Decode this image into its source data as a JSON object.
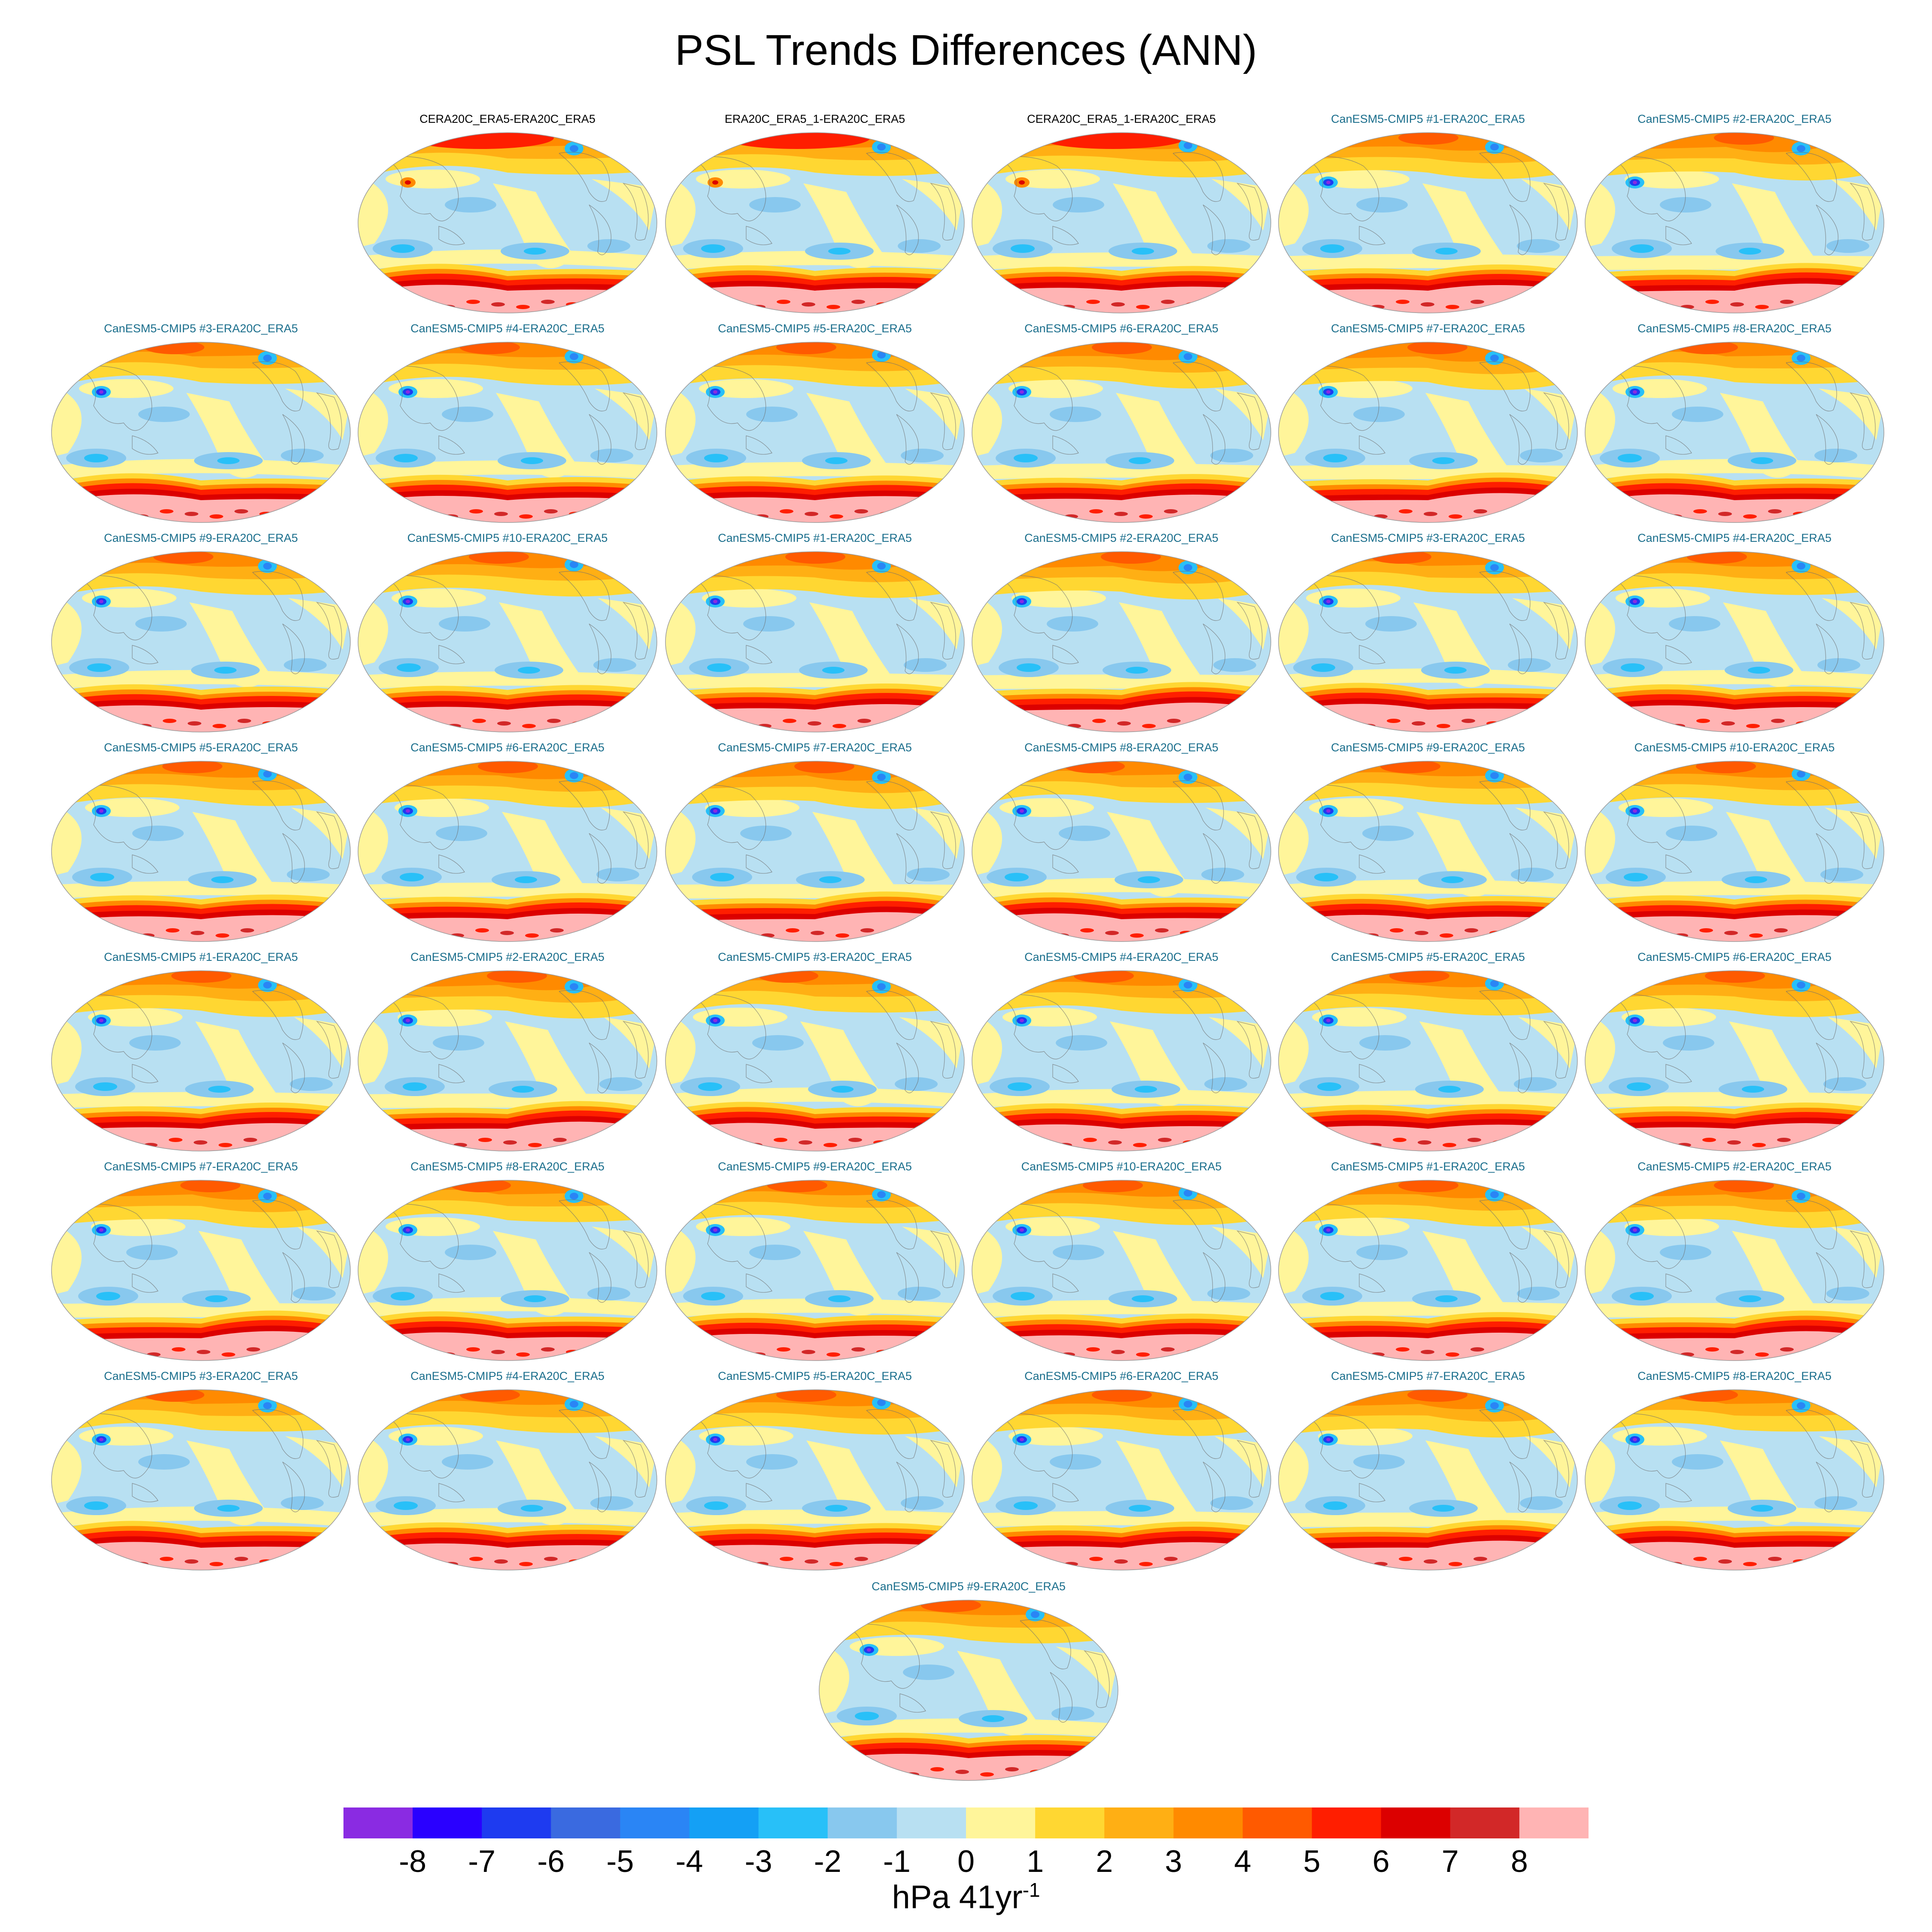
{
  "title": "PSL Trends Differences (ANN)",
  "panels": [
    {
      "title": "CERA20C_ERA5-ERA20C_ERA5",
      "title_color": "#000000",
      "kind": "ref"
    },
    {
      "title": "ERA20C_ERA5_1-ERA20C_ERA5",
      "title_color": "#000000",
      "kind": "ref"
    },
    {
      "title": "CERA20C_ERA5_1-ERA20C_ERA5",
      "title_color": "#000000",
      "kind": "ref"
    },
    {
      "title": "CanESM5-CMIP5 #1-ERA20C_ERA5",
      "title_color": "#1a6e8c",
      "kind": "model"
    },
    {
      "title": "CanESM5-CMIP5 #2-ERA20C_ERA5",
      "title_color": "#1a6e8c",
      "kind": "model"
    },
    {
      "title": "CanESM5-CMIP5 #3-ERA20C_ERA5",
      "title_color": "#1a6e8c",
      "kind": "model"
    },
    {
      "title": "CanESM5-CMIP5 #4-ERA20C_ERA5",
      "title_color": "#1a6e8c",
      "kind": "model"
    },
    {
      "title": "CanESM5-CMIP5 #5-ERA20C_ERA5",
      "title_color": "#1a6e8c",
      "kind": "model"
    },
    {
      "title": "CanESM5-CMIP5 #6-ERA20C_ERA5",
      "title_color": "#1a6e8c",
      "kind": "model"
    },
    {
      "title": "CanESM5-CMIP5 #7-ERA20C_ERA5",
      "title_color": "#1a6e8c",
      "kind": "model"
    },
    {
      "title": "CanESM5-CMIP5 #8-ERA20C_ERA5",
      "title_color": "#1a6e8c",
      "kind": "model"
    },
    {
      "title": "CanESM5-CMIP5 #9-ERA20C_ERA5",
      "title_color": "#1a6e8c",
      "kind": "model"
    },
    {
      "title": "CanESM5-CMIP5 #10-ERA20C_ERA5",
      "title_color": "#1a6e8c",
      "kind": "model"
    },
    {
      "title": "CanESM5-CMIP5 #1-ERA20C_ERA5",
      "title_color": "#1a6e8c",
      "kind": "model"
    },
    {
      "title": "CanESM5-CMIP5 #2-ERA20C_ERA5",
      "title_color": "#1a6e8c",
      "kind": "model"
    },
    {
      "title": "CanESM5-CMIP5 #3-ERA20C_ERA5",
      "title_color": "#1a6e8c",
      "kind": "model"
    },
    {
      "title": "CanESM5-CMIP5 #4-ERA20C_ERA5",
      "title_color": "#1a6e8c",
      "kind": "model"
    },
    {
      "title": "CanESM5-CMIP5 #5-ERA20C_ERA5",
      "title_color": "#1a6e8c",
      "kind": "model"
    },
    {
      "title": "CanESM5-CMIP5 #6-ERA20C_ERA5",
      "title_color": "#1a6e8c",
      "kind": "model"
    },
    {
      "title": "CanESM5-CMIP5 #7-ERA20C_ERA5",
      "title_color": "#1a6e8c",
      "kind": "model"
    },
    {
      "title": "CanESM5-CMIP5 #8-ERA20C_ERA5",
      "title_color": "#1a6e8c",
      "kind": "model"
    },
    {
      "title": "CanESM5-CMIP5 #9-ERA20C_ERA5",
      "title_color": "#1a6e8c",
      "kind": "model"
    },
    {
      "title": "CanESM5-CMIP5 #10-ERA20C_ERA5",
      "title_color": "#1a6e8c",
      "kind": "model"
    },
    {
      "title": "CanESM5-CMIP5 #1-ERA20C_ERA5",
      "title_color": "#1a6e8c",
      "kind": "model"
    },
    {
      "title": "CanESM5-CMIP5 #2-ERA20C_ERA5",
      "title_color": "#1a6e8c",
      "kind": "model"
    },
    {
      "title": "CanESM5-CMIP5 #3-ERA20C_ERA5",
      "title_color": "#1a6e8c",
      "kind": "model"
    },
    {
      "title": "CanESM5-CMIP5 #4-ERA20C_ERA5",
      "title_color": "#1a6e8c",
      "kind": "model"
    },
    {
      "title": "CanESM5-CMIP5 #5-ERA20C_ERA5",
      "title_color": "#1a6e8c",
      "kind": "model"
    },
    {
      "title": "CanESM5-CMIP5 #6-ERA20C_ERA5",
      "title_color": "#1a6e8c",
      "kind": "model"
    },
    {
      "title": "CanESM5-CMIP5 #7-ERA20C_ERA5",
      "title_color": "#1a6e8c",
      "kind": "model"
    },
    {
      "title": "CanESM5-CMIP5 #8-ERA20C_ERA5",
      "title_color": "#1a6e8c",
      "kind": "model"
    },
    {
      "title": "CanESM5-CMIP5 #9-ERA20C_ERA5",
      "title_color": "#1a6e8c",
      "kind": "model"
    },
    {
      "title": "CanESM5-CMIP5 #10-ERA20C_ERA5",
      "title_color": "#1a6e8c",
      "kind": "model"
    },
    {
      "title": "CanESM5-CMIP5 #1-ERA20C_ERA5",
      "title_color": "#1a6e8c",
      "kind": "model"
    },
    {
      "title": "CanESM5-CMIP5 #2-ERA20C_ERA5",
      "title_color": "#1a6e8c",
      "kind": "model"
    },
    {
      "title": "CanESM5-CMIP5 #3-ERA20C_ERA5",
      "title_color": "#1a6e8c",
      "kind": "model"
    },
    {
      "title": "CanESM5-CMIP5 #4-ERA20C_ERA5",
      "title_color": "#1a6e8c",
      "kind": "model"
    },
    {
      "title": "CanESM5-CMIP5 #5-ERA20C_ERA5",
      "title_color": "#1a6e8c",
      "kind": "model"
    },
    {
      "title": "CanESM5-CMIP5 #6-ERA20C_ERA5",
      "title_color": "#1a6e8c",
      "kind": "model"
    },
    {
      "title": "CanESM5-CMIP5 #7-ERA20C_ERA5",
      "title_color": "#1a6e8c",
      "kind": "model"
    },
    {
      "title": "CanESM5-CMIP5 #8-ERA20C_ERA5",
      "title_color": "#1a6e8c",
      "kind": "model"
    },
    {
      "title": "CanESM5-CMIP5 #9-ERA20C_ERA5",
      "title_color": "#1a6e8c",
      "kind": "model"
    }
  ],
  "colorbar": {
    "colors": [
      "#8a2be2",
      "#2a00ff",
      "#1e3bf0",
      "#3a6ae0",
      "#2a85f5",
      "#14a0f5",
      "#28c0f8",
      "#88c8ee",
      "#b8e0f2",
      "#fff59a",
      "#ffd732",
      "#ffaf14",
      "#ff8a00",
      "#ff5a00",
      "#ff1e00",
      "#dc0000",
      "#d22828",
      "#ffb4b4"
    ],
    "tick_labels": [
      "-8",
      "-7",
      "-6",
      "-5",
      "-4",
      "-3",
      "-2",
      "-1",
      "0",
      "1",
      "2",
      "3",
      "4",
      "5",
      "6",
      "7",
      "8"
    ],
    "units": "hPa 41yr",
    "units_superscript": "-1"
  }
}
